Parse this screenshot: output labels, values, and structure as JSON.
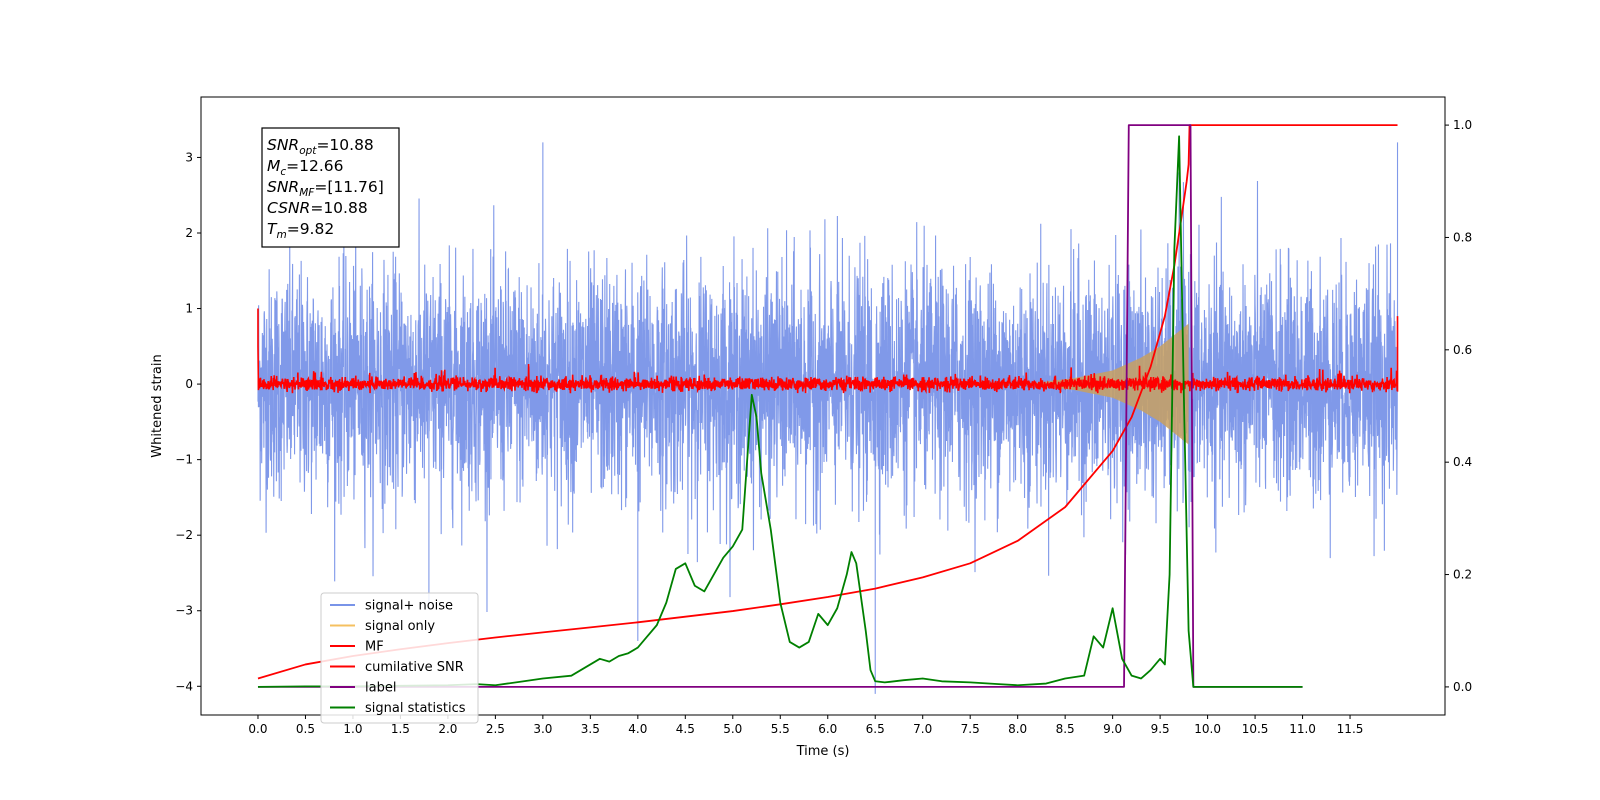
{
  "chart_data": {
    "type": "line",
    "title": "",
    "xlabel": "Time (s)",
    "ylabel": "Whitened strain",
    "xlim": [
      -0.6,
      12.5
    ],
    "ylim": [
      -4.38,
      3.8
    ],
    "y2lim": [
      -0.05,
      1.05
    ],
    "grid": false,
    "legend_position": "lower-left",
    "x_ticks": [
      "0.0",
      "0.5",
      "1.0",
      "1.5",
      "2.0",
      "2.5",
      "3.0",
      "3.5",
      "4.0",
      "4.5",
      "5.0",
      "5.5",
      "6.0",
      "6.5",
      "7.0",
      "7.5",
      "8.0",
      "8.5",
      "9.0",
      "9.5",
      "10.0",
      "10.5",
      "11.0",
      "11.5"
    ],
    "y_ticks": [
      "3",
      "2",
      "1",
      "0",
      "−1",
      "−2",
      "−3",
      "−4"
    ],
    "y2_ticks": [
      "1.0",
      "0.8",
      "0.6",
      "0.4",
      "0.2",
      "0.0"
    ],
    "annotation": [
      {
        "base": "SNR",
        "sub": "opt",
        "rest": "=10.88"
      },
      {
        "base": "M",
        "sub": "c",
        "rest": "=12.66"
      },
      {
        "base": "SNR",
        "sub": "MF",
        "rest": "=[11.76]"
      },
      {
        "base": "CSNR",
        "sub": "",
        "rest": "=10.88"
      },
      {
        "base": "T",
        "sub": "m",
        "rest": "=9.82"
      }
    ],
    "legend": [
      {
        "label": "signal+ noise",
        "color": "#7994e8"
      },
      {
        "label": "signal only",
        "color": "#f5c060"
      },
      {
        "label": "MF",
        "color": "#ff0000"
      },
      {
        "label": "cumilative SNR",
        "color": "#ff0000"
      },
      {
        "label": "label",
        "color": "#800080"
      },
      {
        "label": "signal statistics",
        "color": "#008000"
      }
    ],
    "series": [
      {
        "name": "signal+ noise",
        "color": "#7994e8",
        "axis": "left",
        "x_range": [
          0.0,
          12.0
        ],
        "approx_amplitude": [
          -2.0,
          2.0
        ],
        "peak_excursions": [
          [
            1.8,
            -2.9
          ],
          [
            3.0,
            3.2
          ],
          [
            4.0,
            -3.4
          ],
          [
            6.5,
            -4.1
          ],
          [
            9.7,
            2.8
          ],
          [
            12.0,
            3.2
          ]
        ]
      },
      {
        "name": "signal only",
        "color": "#c8a060",
        "axis": "left",
        "envelope": {
          "x": [
            8.2,
            8.6,
            9.0,
            9.3,
            9.5,
            9.65,
            9.75,
            9.8
          ],
          "amp": [
            0.02,
            0.08,
            0.18,
            0.35,
            0.5,
            0.65,
            0.75,
            0.8
          ]
        }
      },
      {
        "name": "MF",
        "color": "#ff0000",
        "axis": "left",
        "x_range": [
          0.0,
          12.0
        ],
        "approx_amplitude": [
          -0.1,
          0.1
        ],
        "edge_values": {
          "start": [
            1.0,
            0.5
          ],
          "end": [
            0.9,
            -0.1
          ]
        }
      },
      {
        "name": "cumilative SNR",
        "color": "#ff0000",
        "axis": "right",
        "x": [
          0.0,
          0.5,
          1.0,
          1.5,
          2.0,
          2.5,
          3.0,
          3.5,
          4.0,
          4.5,
          5.0,
          5.5,
          6.0,
          6.5,
          7.0,
          7.5,
          8.0,
          8.5,
          9.0,
          9.2,
          9.4,
          9.55,
          9.65,
          9.72,
          9.78,
          9.8,
          9.81,
          12.0
        ],
        "values": [
          0.015,
          0.04,
          0.055,
          0.067,
          0.078,
          0.088,
          0.097,
          0.106,
          0.115,
          0.125,
          0.135,
          0.147,
          0.16,
          0.175,
          0.195,
          0.22,
          0.26,
          0.32,
          0.42,
          0.48,
          0.57,
          0.66,
          0.75,
          0.83,
          0.9,
          0.93,
          1.0,
          1.0
        ]
      },
      {
        "name": "label",
        "color": "#800080",
        "axis": "right",
        "x": [
          0.0,
          9.12,
          9.17,
          9.82,
          9.85,
          11.0
        ],
        "values": [
          0.0,
          0.0,
          1.0,
          1.0,
          0.0,
          0.0
        ]
      },
      {
        "name": "signal statistics",
        "color": "#008000",
        "axis": "right",
        "x": [
          0.0,
          0.5,
          1.0,
          1.5,
          2.0,
          2.3,
          2.5,
          2.8,
          3.0,
          3.3,
          3.5,
          3.6,
          3.7,
          3.8,
          3.9,
          4.0,
          4.1,
          4.2,
          4.3,
          4.4,
          4.5,
          4.6,
          4.7,
          4.8,
          4.9,
          5.0,
          5.1,
          5.15,
          5.2,
          5.25,
          5.3,
          5.4,
          5.5,
          5.6,
          5.7,
          5.8,
          5.9,
          6.0,
          6.1,
          6.2,
          6.25,
          6.3,
          6.4,
          6.45,
          6.5,
          6.6,
          6.8,
          7.0,
          7.2,
          7.5,
          7.8,
          8.0,
          8.3,
          8.5,
          8.7,
          8.8,
          8.9,
          9.0,
          9.1,
          9.2,
          9.3,
          9.4,
          9.5,
          9.55,
          9.6,
          9.65,
          9.7,
          9.75,
          9.8,
          9.85,
          9.9,
          10.0,
          11.0
        ],
        "values": [
          0.0,
          0.001,
          0.001,
          0.002,
          0.003,
          0.005,
          0.003,
          0.01,
          0.015,
          0.02,
          0.04,
          0.05,
          0.045,
          0.055,
          0.06,
          0.07,
          0.09,
          0.11,
          0.15,
          0.21,
          0.22,
          0.18,
          0.17,
          0.2,
          0.23,
          0.25,
          0.28,
          0.4,
          0.52,
          0.48,
          0.38,
          0.28,
          0.15,
          0.08,
          0.07,
          0.08,
          0.13,
          0.11,
          0.14,
          0.2,
          0.24,
          0.22,
          0.1,
          0.03,
          0.01,
          0.008,
          0.012,
          0.015,
          0.01,
          0.008,
          0.005,
          0.003,
          0.006,
          0.015,
          0.02,
          0.09,
          0.07,
          0.14,
          0.05,
          0.02,
          0.015,
          0.03,
          0.05,
          0.04,
          0.2,
          0.78,
          0.98,
          0.52,
          0.1,
          0.0,
          0.0,
          0.0,
          0.0
        ]
      }
    ]
  }
}
